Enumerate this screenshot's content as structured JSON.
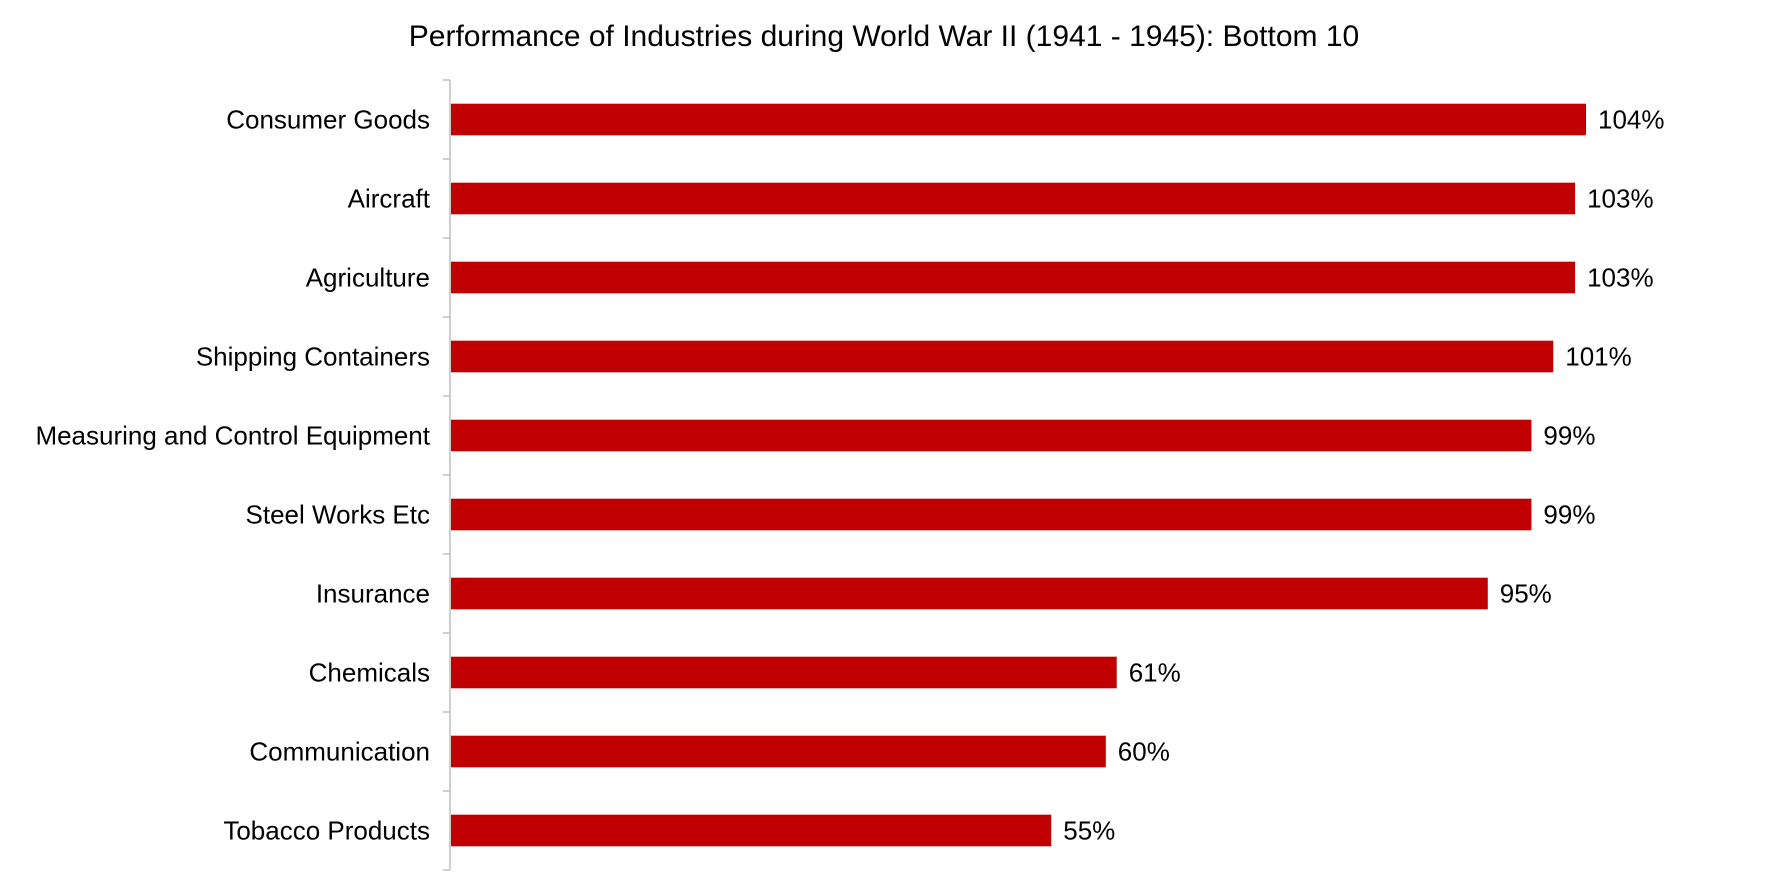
{
  "chart_data": {
    "type": "bar",
    "orientation": "horizontal",
    "title": "Performance of Industries during World War II (1941 - 1945): Bottom 10",
    "xlabel": "",
    "ylabel": "",
    "categories": [
      "Consumer Goods",
      "Aircraft",
      "Agriculture",
      "Shipping Containers",
      "Measuring and Control Equipment",
      "Steel Works Etc",
      "Insurance",
      "Chemicals",
      "Communication",
      "Tobacco Products"
    ],
    "values": [
      104,
      103,
      103,
      101,
      99,
      99,
      95,
      61,
      60,
      55
    ],
    "value_labels": [
      "104%",
      "103%",
      "103%",
      "101%",
      "99%",
      "99%",
      "95%",
      "61%",
      "60%",
      "55%"
    ],
    "unit": "%",
    "xlim": [
      0,
      104
    ],
    "grid": false,
    "legend": "none",
    "bar_color": "#C00000",
    "axis_color": "#BFBFBF"
  }
}
